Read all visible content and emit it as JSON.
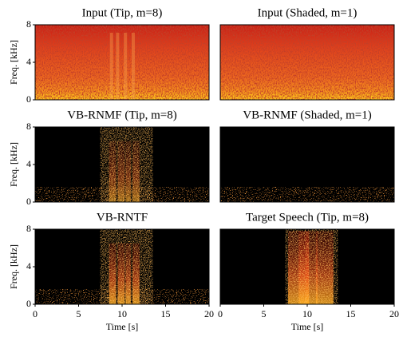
{
  "chart_data": [
    {
      "type": "spectrogram",
      "title": "Input (Tip, m=8)",
      "ylabel": "Freq. [kHz]",
      "ylim": [
        0,
        8
      ],
      "yticks": [
        0,
        4,
        8
      ],
      "xlim": [
        0,
        20
      ]
    },
    {
      "type": "spectrogram",
      "title": "Input (Shaded, m=1)",
      "ylim": [
        0,
        8
      ],
      "xlim": [
        0,
        20
      ]
    },
    {
      "type": "spectrogram",
      "title": "VB-RNMF (Tip, m=8)",
      "ylabel": "Freq. [kHz]",
      "ylim": [
        0,
        8
      ],
      "yticks": [
        0,
        4,
        8
      ],
      "xlim": [
        0,
        20
      ]
    },
    {
      "type": "spectrogram",
      "title": "VB-RNMF (Shaded, m=1)",
      "ylim": [
        0,
        8
      ],
      "xlim": [
        0,
        20
      ]
    },
    {
      "type": "spectrogram",
      "title": "VB-RNTF",
      "ylabel": "Freq. [kHz]",
      "xlabel": "Time [s]",
      "ylim": [
        0,
        8
      ],
      "yticks": [
        0,
        4,
        8
      ],
      "xlim": [
        0,
        20
      ],
      "xticks": [
        0,
        5,
        10,
        15,
        20
      ]
    },
    {
      "type": "spectrogram",
      "title": "Target Speech (Tip, m=8)",
      "xlabel": "Time [s]",
      "ylim": [
        0,
        8
      ],
      "xlim": [
        0,
        20
      ],
      "xticks": [
        0,
        5,
        10,
        15,
        20
      ]
    }
  ]
}
